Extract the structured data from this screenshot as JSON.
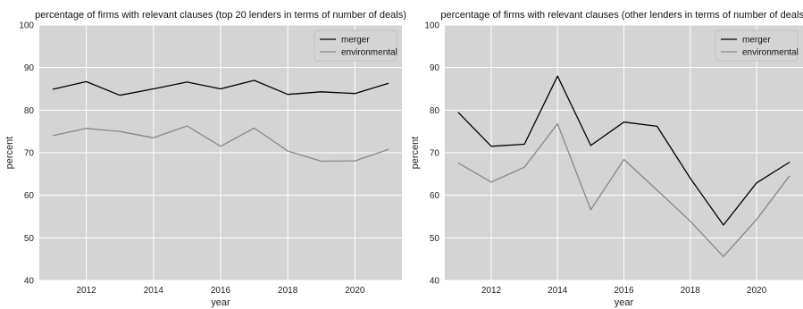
{
  "chart_data": [
    {
      "type": "line",
      "title": "percentage of firms with relevant clauses (top 20 lenders in terms of number of deals)",
      "xlabel": "year",
      "ylabel": "percent",
      "x": [
        2011,
        2012,
        2013,
        2014,
        2015,
        2016,
        2017,
        2018,
        2019,
        2020,
        2021
      ],
      "xlim": [
        2010.6,
        2021.4
      ],
      "xticks": [
        2012,
        2014,
        2016,
        2018,
        2020
      ],
      "ylim": [
        40,
        100
      ],
      "yticks": [
        40,
        50,
        60,
        70,
        80,
        90,
        100
      ],
      "grid": true,
      "legend_position": "top-right",
      "series": [
        {
          "name": "merger",
          "color": "#000000",
          "values": [
            84.9,
            86.7,
            83.5,
            85.0,
            86.6,
            85.0,
            87.0,
            83.7,
            84.3,
            83.9,
            86.3
          ]
        },
        {
          "name": "environmental",
          "color": "#888888",
          "values": [
            74.0,
            75.7,
            75.0,
            73.5,
            76.3,
            71.5,
            75.8,
            70.4,
            68.0,
            68.1,
            70.8
          ]
        }
      ]
    },
    {
      "type": "line",
      "title": "percentage of firms with relevant clauses (other lenders in terms of number of deals)",
      "xlabel": "year",
      "ylabel": "percent",
      "x": [
        2011,
        2012,
        2013,
        2014,
        2015,
        2016,
        2017,
        2018,
        2019,
        2020,
        2021
      ],
      "xlim": [
        2010.6,
        2021.4
      ],
      "xticks": [
        2012,
        2014,
        2016,
        2018,
        2020
      ],
      "ylim": [
        40,
        100
      ],
      "yticks": [
        40,
        50,
        60,
        70,
        80,
        90,
        100
      ],
      "grid": true,
      "legend_position": "top-right",
      "series": [
        {
          "name": "merger",
          "color": "#000000",
          "values": [
            79.5,
            71.5,
            72.0,
            88.0,
            71.7,
            77.2,
            76.2,
            64.0,
            53.0,
            62.9,
            67.8
          ]
        },
        {
          "name": "environmental",
          "color": "#888888",
          "values": [
            67.6,
            63.1,
            66.6,
            76.8,
            56.6,
            68.4,
            61.2,
            53.9,
            45.6,
            54.3,
            64.6
          ]
        }
      ]
    }
  ]
}
